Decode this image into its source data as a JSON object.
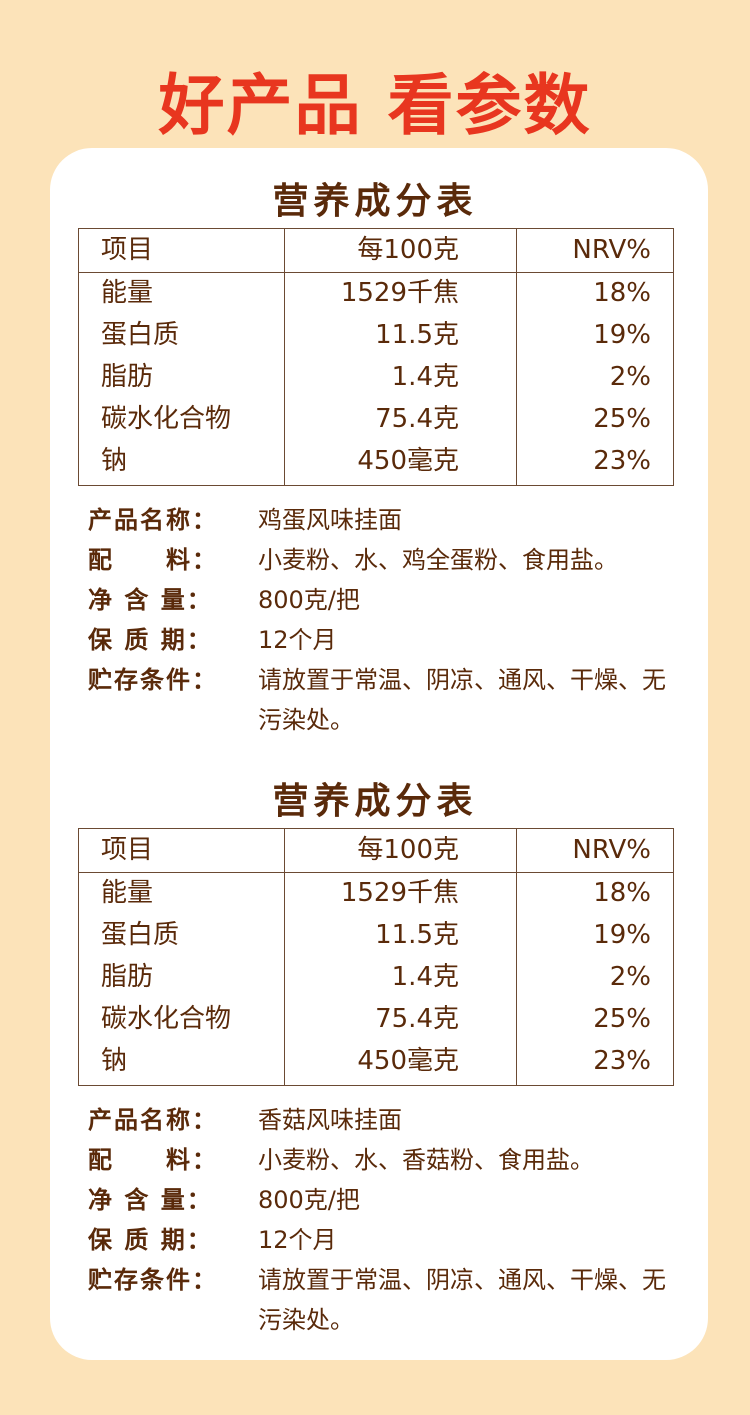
{
  "header": {
    "title": "好产品 看参数"
  },
  "sections": [
    {
      "table_title": "营养成分表",
      "table": {
        "columns": [
          "项目",
          "每100克",
          "NRV%"
        ],
        "rows": [
          [
            "能量",
            "1529千焦",
            "18%"
          ],
          [
            "蛋白质",
            "11.5克",
            "19%"
          ],
          [
            "脂肪",
            "1.4克",
            "2%"
          ],
          [
            "碳水化合物",
            "75.4克",
            "25%"
          ],
          [
            "钠",
            "450毫克",
            "23%"
          ]
        ]
      },
      "info": [
        {
          "label": "产品名称：",
          "value": "鸡蛋风味挂面"
        },
        {
          "label": "配　　料：",
          "value": "小麦粉、水、鸡全蛋粉、食用盐。"
        },
        {
          "label": "净 含 量：",
          "value": "800克/把"
        },
        {
          "label": "保 质 期：",
          "value": "12个月"
        },
        {
          "label": "贮存条件：",
          "value": "请放置于常温、阴凉、通风、干燥、无污染处。"
        }
      ]
    },
    {
      "table_title": "营养成分表",
      "table": {
        "columns": [
          "项目",
          "每100克",
          "NRV%"
        ],
        "rows": [
          [
            "能量",
            "1529千焦",
            "18%"
          ],
          [
            "蛋白质",
            "11.5克",
            "19%"
          ],
          [
            "脂肪",
            "1.4克",
            "2%"
          ],
          [
            "碳水化合物",
            "75.4克",
            "25%"
          ],
          [
            "钠",
            "450毫克",
            "23%"
          ]
        ]
      },
      "info": [
        {
          "label": "产品名称：",
          "value": "香菇风味挂面"
        },
        {
          "label": "配　　料：",
          "value": "小麦粉、水、香菇粉、食用盐。"
        },
        {
          "label": "净 含 量：",
          "value": "800克/把"
        },
        {
          "label": "保 质 期：",
          "value": "12个月"
        },
        {
          "label": "贮存条件：",
          "value": "请放置于常温、阴凉、通风、干燥、无污染处。"
        }
      ]
    }
  ]
}
